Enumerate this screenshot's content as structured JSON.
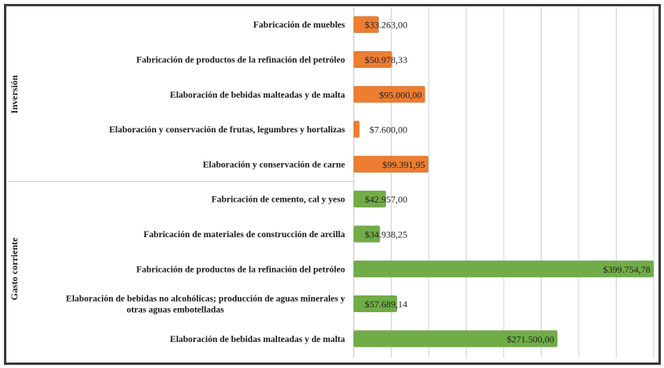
{
  "chart_data": {
    "type": "bar",
    "orientation": "horizontal",
    "title": "",
    "xlabel": "",
    "ylabel": "",
    "xlim": [
      0,
      400000
    ],
    "grid": true,
    "grid_step": 50000,
    "legend": "none",
    "groups": [
      {
        "name": "Inversión",
        "color": "#ED7D31",
        "categories": [
          "Fabricación de muebles",
          "Fabricación de productos de la refinación del petróleo",
          "Elaboración de bebidas malteadas y de malta",
          "Elaboración y conservación de frutas, legumbres y hortalizas",
          "Elaboración y conservación de carne"
        ],
        "values": [
          33263.0,
          50978.33,
          95000.0,
          7600.0,
          99391.95
        ],
        "labels": [
          "$33.263,00",
          "$50.978,33",
          "$95.000,00",
          "$7.600,00",
          "$99.391,95"
        ]
      },
      {
        "name": "Gasto corriente",
        "color": "#70AD47",
        "categories": [
          "Fabricación de cemento, cal y yeso",
          "Fabricación de materiales de construcción de arcilla",
          "Fabricación de productos de la refinación del petróleo",
          "Elaboración de bebidas no alcohólicas; producción de aguas minerales y|otras aguas embotelladas",
          "Elaboración de bebidas malteadas y de malta"
        ],
        "values": [
          42957.0,
          34938.25,
          399754.78,
          57689.14,
          271500.0
        ],
        "labels": [
          "$42.957,00",
          "$34.938,25",
          "$399.754,78",
          "$57.689,14",
          "$271.500,00"
        ]
      }
    ]
  }
}
